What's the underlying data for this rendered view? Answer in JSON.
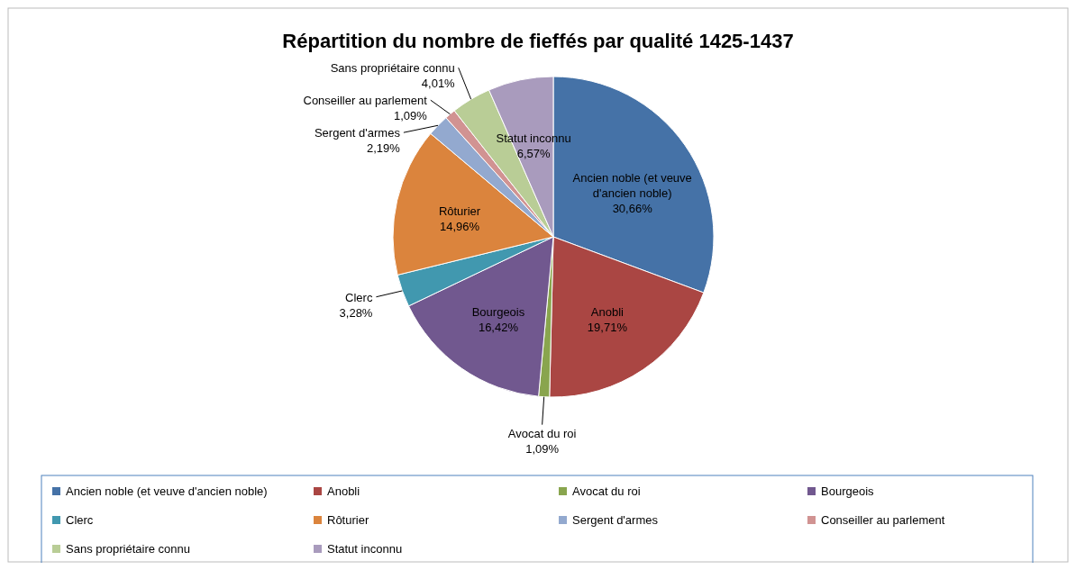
{
  "chart_data": {
    "type": "pie",
    "title": "Répartition du nombre de fieffés par qualité 1425-1437",
    "categories": [
      "Ancien noble (et veuve d'ancien noble)",
      "Anobli",
      "Avocat du roi",
      "Bourgeois",
      "Clerc",
      "Rôturier",
      "Sergent d'armes",
      "Conseiller au parlement",
      "Sans propriétaire connu",
      "Statut inconnu"
    ],
    "values": [
      30.66,
      19.71,
      1.09,
      16.42,
      3.28,
      14.96,
      2.19,
      1.09,
      4.01,
      6.57
    ],
    "colors": [
      "#4572a7",
      "#aa4643",
      "#89a54e",
      "#71588f",
      "#4198af",
      "#db843d",
      "#93a9cf",
      "#d19392",
      "#b9cd96",
      "#a99bbd"
    ],
    "value_labels": [
      "30,66%",
      "19,71%",
      "1,09%",
      "16,42%",
      "3,28%",
      "14,96%",
      "2,19%",
      "1,09%",
      "4,01%",
      "6,57%"
    ],
    "legend": "bottom"
  }
}
